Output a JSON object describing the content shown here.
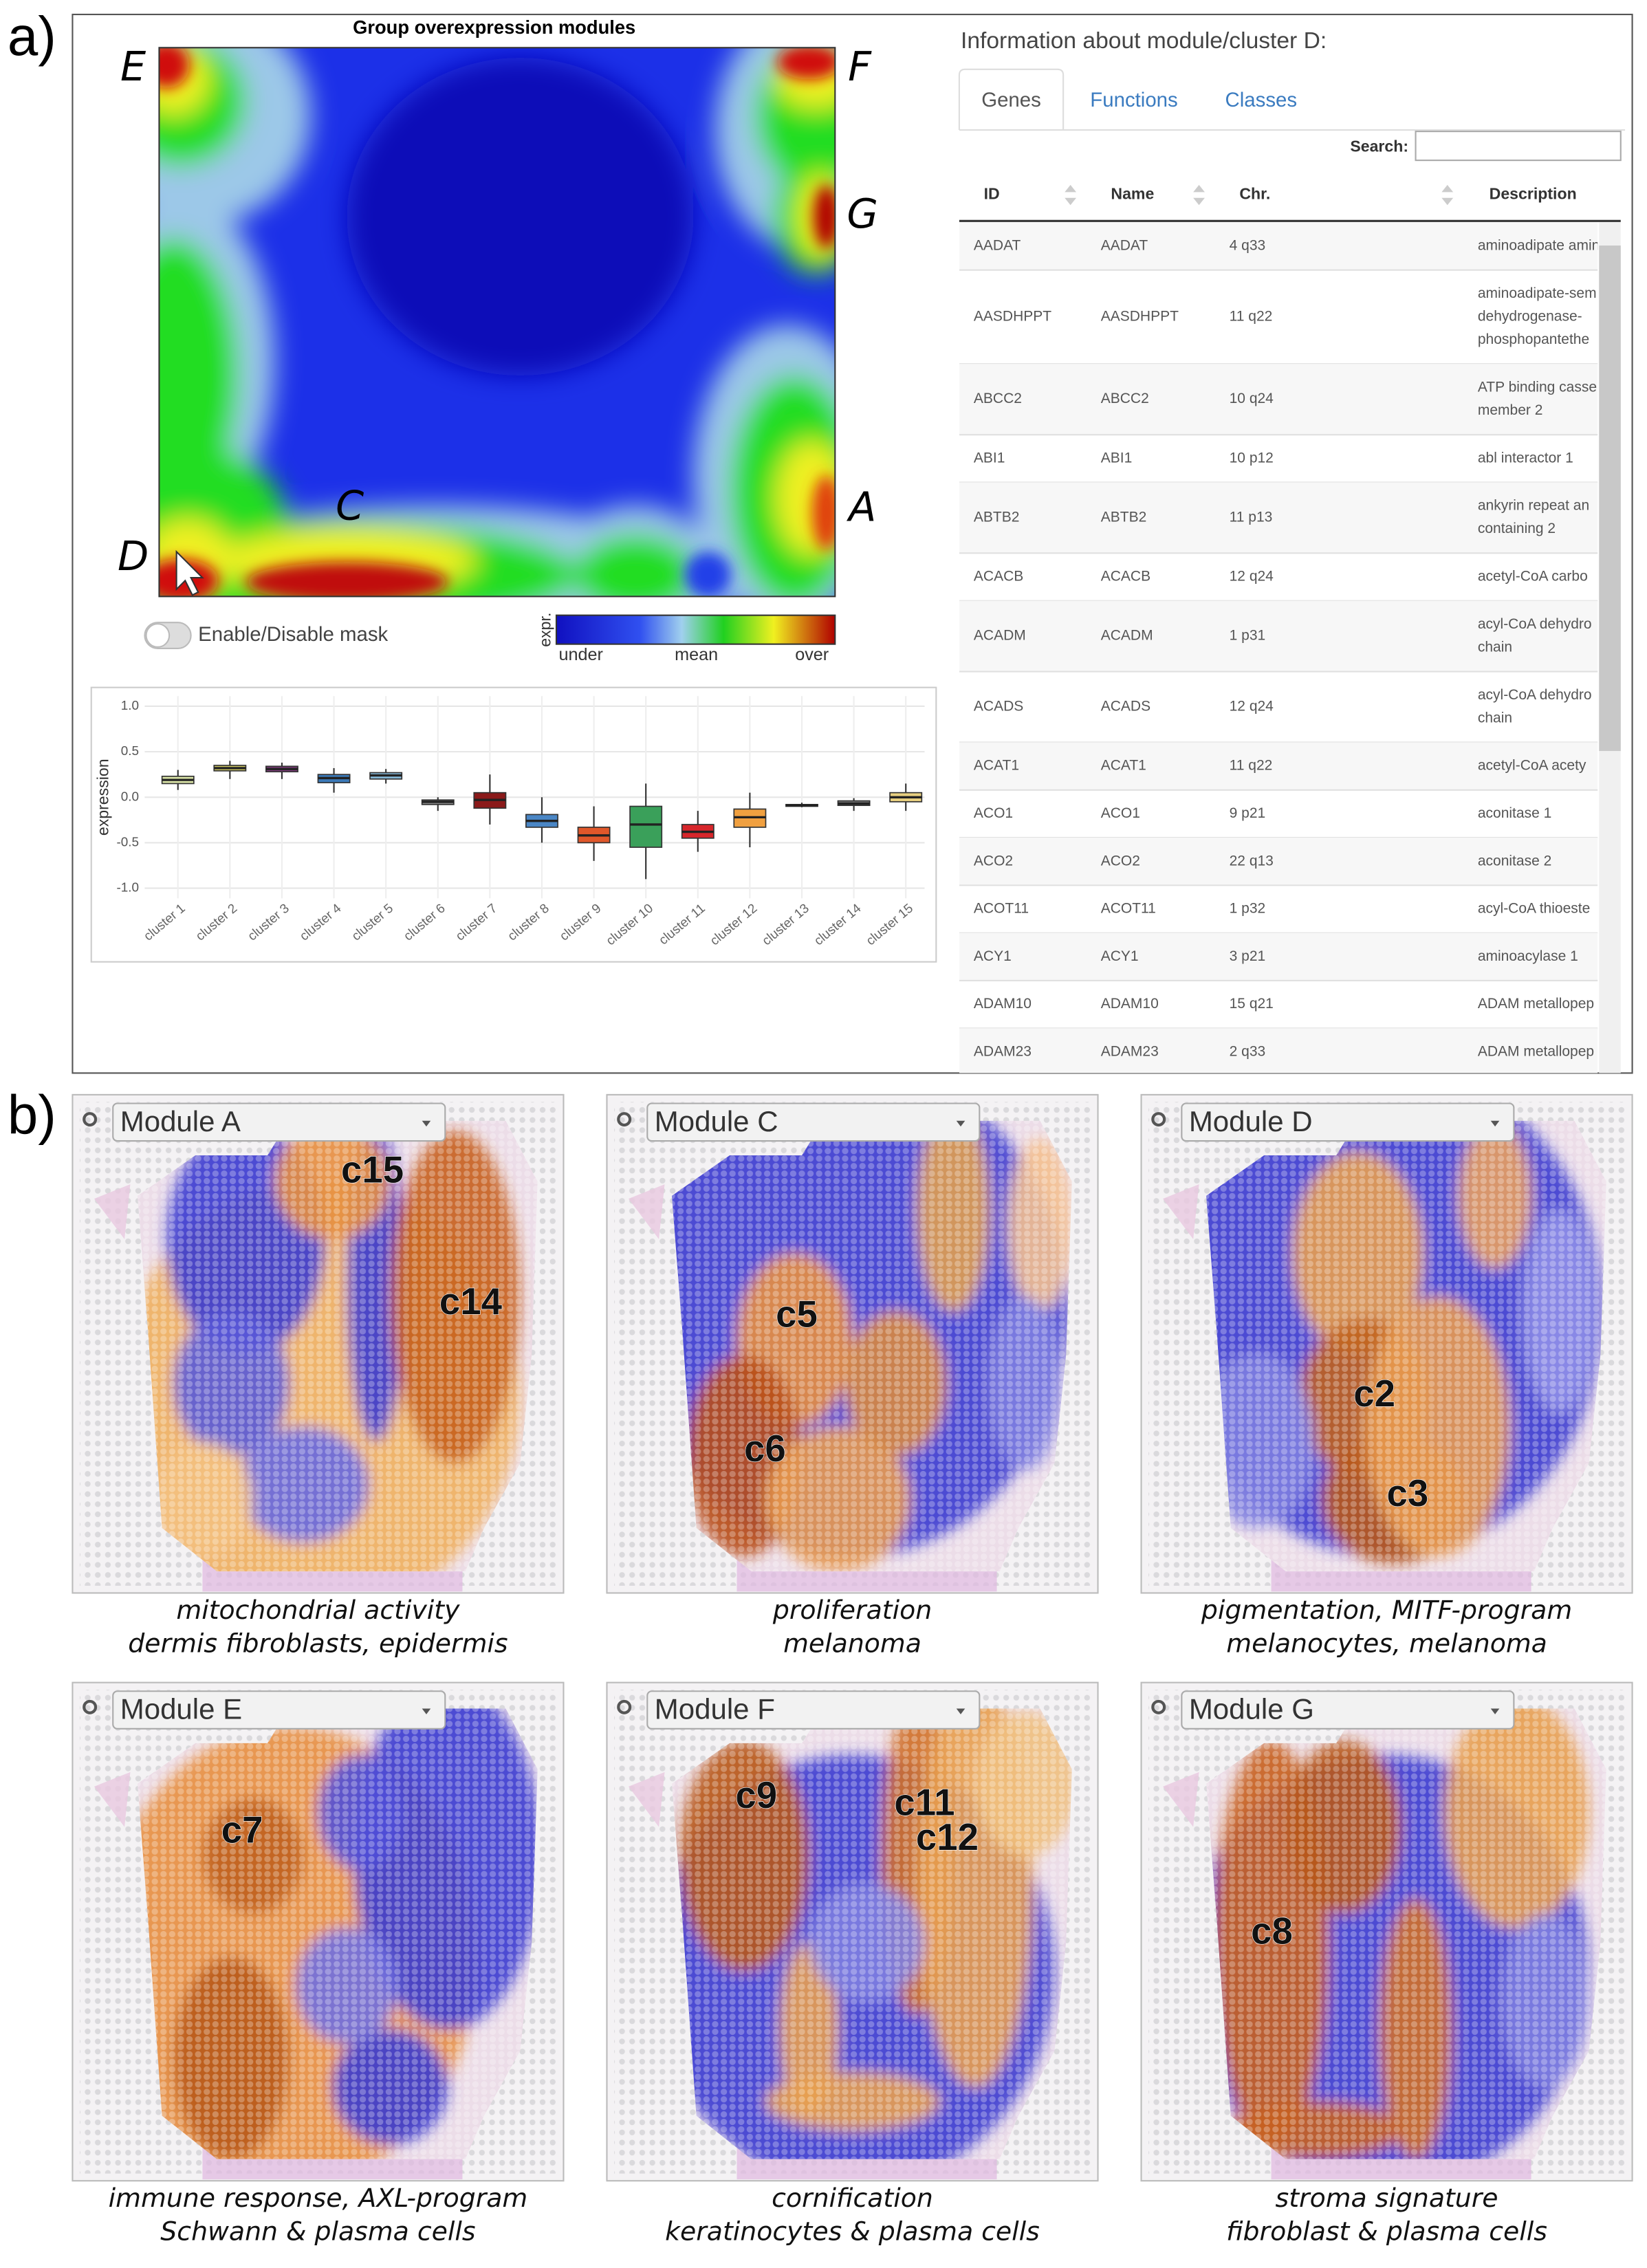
{
  "panel_a": {
    "label": "a)",
    "heatmap_title": "Group overexpression modules",
    "module_letters": [
      "E",
      "F",
      "G",
      "A",
      "C",
      "D"
    ],
    "mask_toggle": "Enable/Disable mask",
    "legend": {
      "title": "expr.",
      "labels": [
        "under",
        "mean",
        "over"
      ]
    },
    "boxplot": {
      "type": "box",
      "ylabel": "expression",
      "categories": [
        "cluster 1",
        "cluster 2",
        "cluster 3",
        "cluster 4",
        "cluster 5",
        "cluster 6",
        "cluster 7",
        "cluster 8",
        "cluster 9",
        "cluster 10",
        "cluster 11",
        "cluster 12",
        "cluster 13",
        "cluster 14",
        "cluster 15"
      ],
      "colors": [
        "#d9e3a6",
        "#cfc860",
        "#7b3a78",
        "#3b79b8",
        "#86b9d8",
        "#8a8a8a",
        "#8b1a1a",
        "#4a86c5",
        "#e0572a",
        "#3aa05a",
        "#d7262b",
        "#f0a040",
        "#9a9a9a",
        "#777777",
        "#e8d080"
      ],
      "whisker_low": [
        0.08,
        0.2,
        0.2,
        0.05,
        0.15,
        -0.15,
        -0.3,
        -0.5,
        -0.7,
        -0.9,
        -0.6,
        -0.55,
        -0.11,
        -0.15,
        -0.15
      ],
      "q1": [
        0.15,
        0.29,
        0.28,
        0.16,
        0.2,
        -0.08,
        -0.12,
        -0.33,
        -0.5,
        -0.55,
        -0.45,
        -0.33,
        -0.1,
        -0.09,
        -0.05
      ],
      "median": [
        0.19,
        0.32,
        0.31,
        0.21,
        0.24,
        -0.05,
        -0.03,
        -0.26,
        -0.42,
        -0.3,
        -0.38,
        -0.22,
        -0.09,
        -0.07,
        0.0
      ],
      "q3": [
        0.23,
        0.35,
        0.34,
        0.25,
        0.27,
        -0.03,
        0.05,
        -0.19,
        -0.33,
        -0.1,
        -0.3,
        -0.13,
        -0.08,
        -0.04,
        0.05
      ],
      "whisker_high": [
        0.3,
        0.4,
        0.38,
        0.32,
        0.31,
        0.0,
        0.25,
        0.0,
        -0.1,
        0.15,
        -0.15,
        0.05,
        -0.06,
        -0.01,
        0.15
      ],
      "ylim": [
        -1.0,
        1.0
      ],
      "yticks": [
        {
          "value": 1.0,
          "label": "1.0"
        },
        {
          "value": 0.5,
          "label": "0.5"
        },
        {
          "value": 0.0,
          "label": "0.0"
        },
        {
          "value": -0.5,
          "label": "-0.5"
        },
        {
          "value": -1.0,
          "label": "-1.0"
        }
      ],
      "grid": true
    },
    "info_title": "Information about module/cluster D:",
    "tabs": [
      "Genes",
      "Functions",
      "Classes"
    ],
    "search_label": "Search:",
    "table": {
      "headers": [
        "ID",
        "Name",
        "Chr.",
        "Description"
      ],
      "rows": [
        {
          "id": "AADAT",
          "name": "AADAT",
          "chr": "4 q33",
          "description": [
            "aminoadipate amin"
          ]
        },
        {
          "id": "AASDHPPT",
          "name": "AASDHPPT",
          "chr": "11 q22",
          "description": [
            "aminoadipate-sem",
            "dehydrogenase-",
            "phosphopantethe"
          ]
        },
        {
          "id": "ABCC2",
          "name": "ABCC2",
          "chr": "10 q24",
          "description": [
            "ATP binding casse",
            "member 2"
          ]
        },
        {
          "id": "ABI1",
          "name": "ABI1",
          "chr": "10 p12",
          "description": [
            "abl interactor 1"
          ]
        },
        {
          "id": "ABTB2",
          "name": "ABTB2",
          "chr": "11 p13",
          "description": [
            "ankyrin repeat an",
            "containing 2"
          ]
        },
        {
          "id": "ACACB",
          "name": "ACACB",
          "chr": "12 q24",
          "description": [
            "acetyl-CoA carbo"
          ]
        },
        {
          "id": "ACADM",
          "name": "ACADM",
          "chr": "1 p31",
          "description": [
            "acyl-CoA dehydro",
            "chain"
          ]
        },
        {
          "id": "ACADS",
          "name": "ACADS",
          "chr": "12 q24",
          "description": [
            "acyl-CoA dehydro",
            "chain"
          ]
        },
        {
          "id": "ACAT1",
          "name": "ACAT1",
          "chr": "11 q22",
          "description": [
            "acetyl-CoA acety"
          ]
        },
        {
          "id": "ACO1",
          "name": "ACO1",
          "chr": "9 p21",
          "description": [
            "aconitase 1"
          ]
        },
        {
          "id": "ACO2",
          "name": "ACO2",
          "chr": "22 q13",
          "description": [
            "aconitase 2"
          ]
        },
        {
          "id": "ACOT11",
          "name": "ACOT11",
          "chr": "1 p32",
          "description": [
            "acyl-CoA thioeste"
          ]
        },
        {
          "id": "ACY1",
          "name": "ACY1",
          "chr": "3 p21",
          "description": [
            "aminoacylase 1"
          ]
        },
        {
          "id": "ADAM10",
          "name": "ADAM10",
          "chr": "15 q21",
          "description": [
            "ADAM metallopep"
          ]
        },
        {
          "id": "ADAM23",
          "name": "ADAM23",
          "chr": "2 q33",
          "description": [
            "ADAM metallopep"
          ]
        }
      ]
    }
  },
  "panel_b": {
    "label": "b)",
    "modules": [
      {
        "select": "Module A",
        "clusters": [
          "c15",
          "c14"
        ],
        "caption": [
          "mitochondrial activity",
          "dermis fibroblasts, epidermis"
        ]
      },
      {
        "select": "Module C",
        "clusters": [
          "c5",
          "c6"
        ],
        "caption": [
          "proliferation",
          "melanoma"
        ]
      },
      {
        "select": "Module D",
        "clusters": [
          "c2",
          "c3"
        ],
        "caption": [
          "pigmentation, MITF-program",
          "melanocytes, melanoma"
        ]
      },
      {
        "select": "Module E",
        "clusters": [
          "c7"
        ],
        "caption": [
          "immune response, AXL-program",
          "Schwann & plasma cells"
        ]
      },
      {
        "select": "Module F",
        "clusters": [
          "c9",
          "c11",
          "c12"
        ],
        "caption": [
          "cornification",
          "keratinocytes & plasma cells"
        ]
      },
      {
        "select": "Module G",
        "clusters": [
          "c8"
        ],
        "caption": [
          "stroma signature",
          "fibroblast & plasma cells"
        ]
      }
    ]
  }
}
